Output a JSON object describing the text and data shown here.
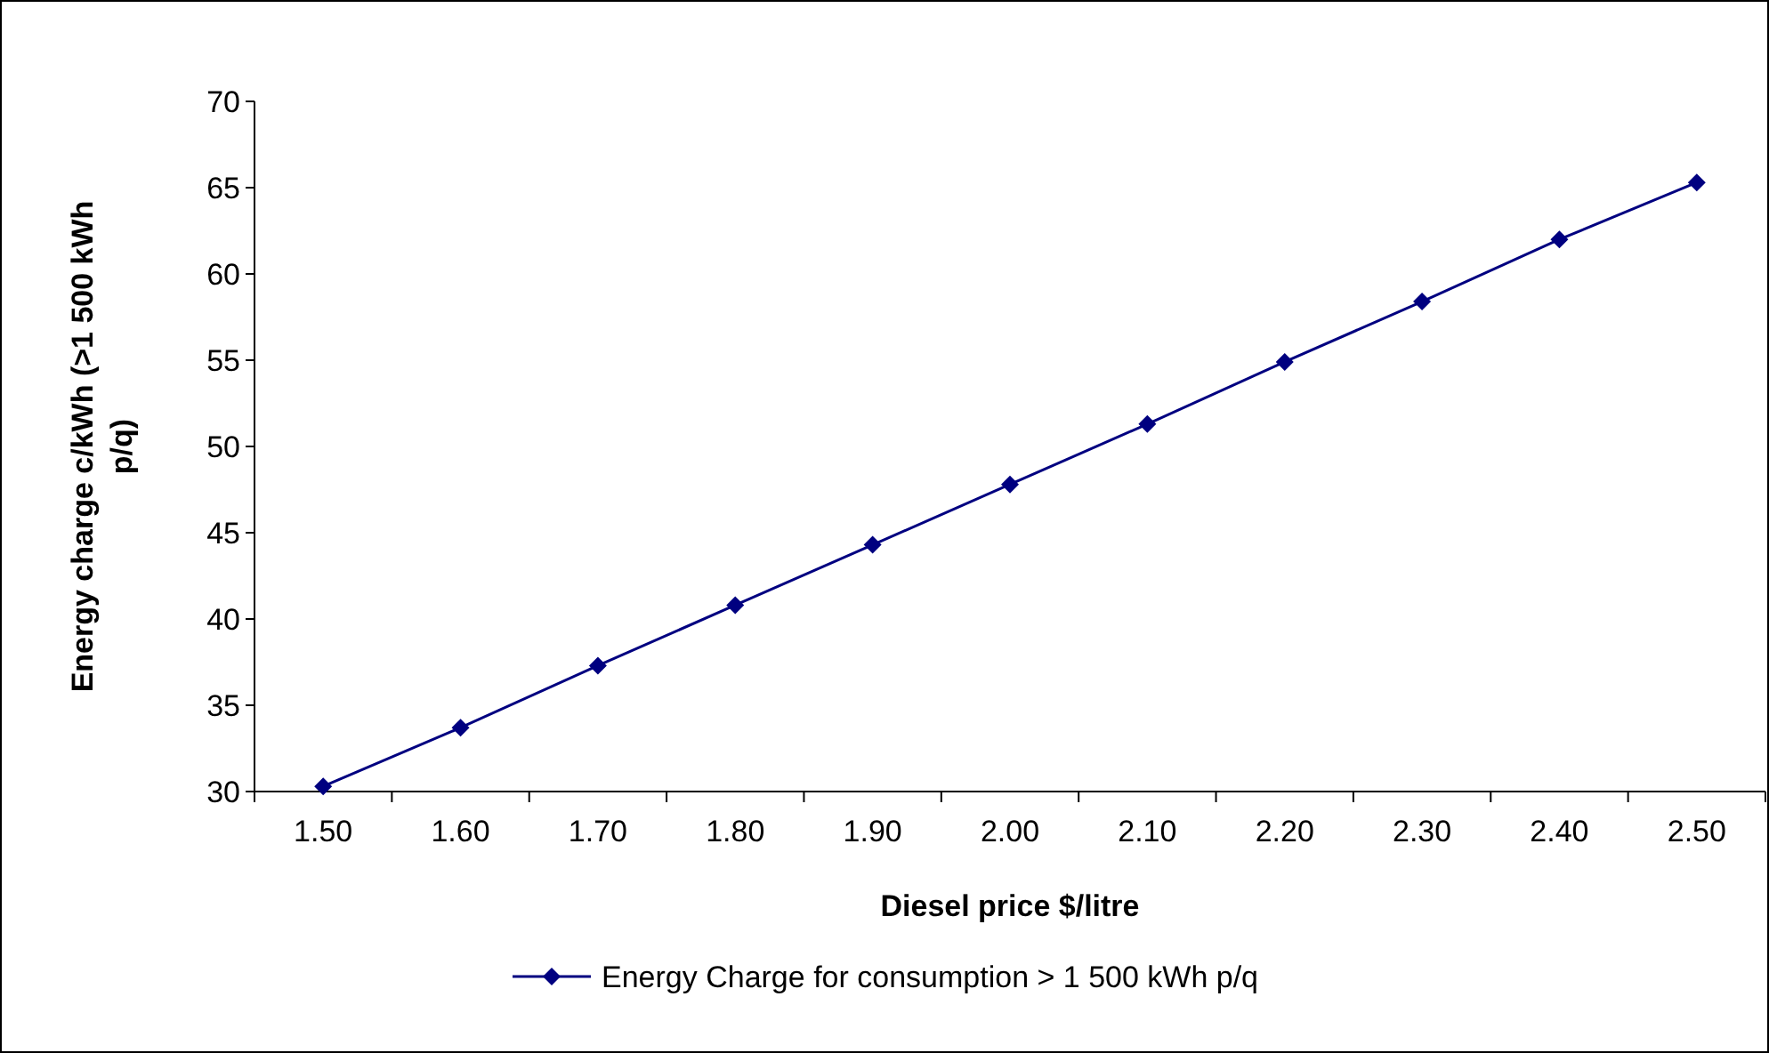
{
  "chart_data": {
    "type": "line",
    "xlabel": "Diesel price $/litre",
    "ylabel": "Energy charge c/kWh (>1 500 kWh p/q)",
    "categories": [
      "1.50",
      "1.60",
      "1.70",
      "1.80",
      "1.90",
      "2.00",
      "2.10",
      "2.20",
      "2.30",
      "2.40",
      "2.50"
    ],
    "series": [
      {
        "name": "Energy Charge for consumption > 1 500 kWh p/q",
        "color": "#000080",
        "values": [
          30.3,
          33.7,
          37.3,
          40.8,
          44.3,
          47.8,
          51.3,
          54.9,
          58.4,
          62.0,
          65.3
        ]
      }
    ],
    "ylim": [
      30,
      70
    ],
    "yticks": [
      30,
      35,
      40,
      45,
      50,
      55,
      60,
      65,
      70
    ],
    "grid": false,
    "legend": "bottom",
    "marker": "diamond",
    "line_style": "solid"
  }
}
